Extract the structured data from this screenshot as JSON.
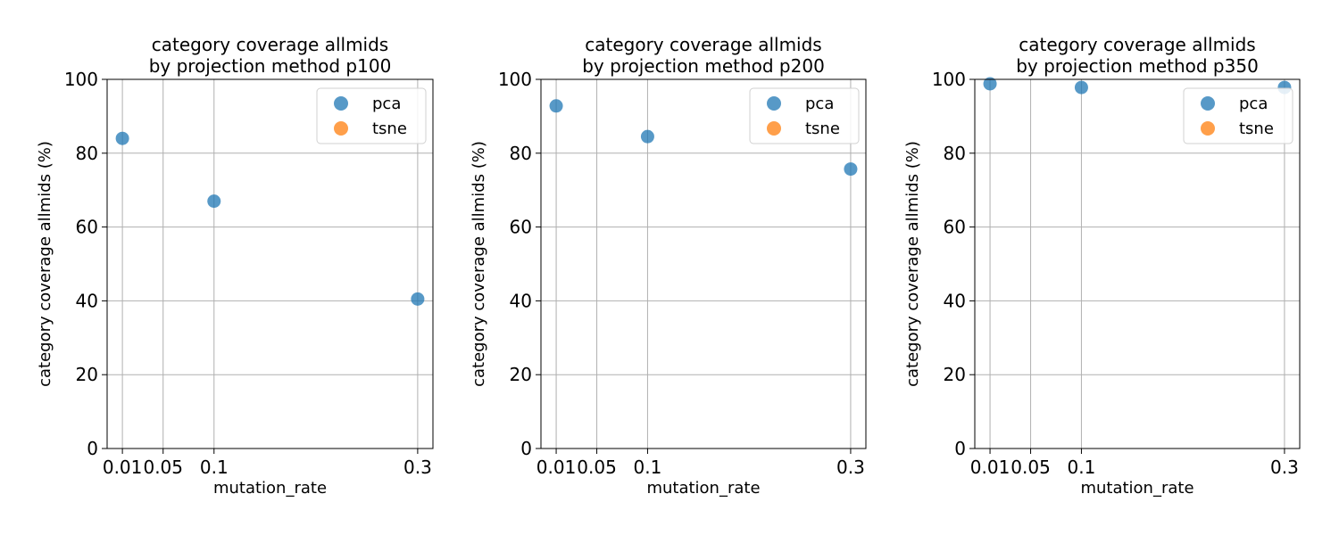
{
  "colors": {
    "pca": "#1f77b4",
    "tsne": "#ff7f0e",
    "grid": "#b0b0b0",
    "axes": "#000000"
  },
  "chart_data": [
    {
      "type": "scatter",
      "title_lines": [
        "category coverage allmids",
        "by projection method p100"
      ],
      "xlabel": "mutation_rate",
      "ylabel": "category coverage allmids (%)",
      "xlim": [
        -0.005,
        0.315
      ],
      "ylim": [
        0,
        100
      ],
      "xticks": [
        0.01,
        0.05,
        0.1,
        0.3
      ],
      "xtick_labels": [
        "0.01",
        "0.05",
        "0.1",
        "0.3"
      ],
      "yticks": [
        0,
        20,
        40,
        60,
        80,
        100
      ],
      "ytick_labels": [
        "0",
        "20",
        "40",
        "60",
        "80",
        "100"
      ],
      "grid": true,
      "legend_position": "top-right",
      "series": [
        {
          "name": "pca",
          "x": [
            0.01,
            0.1,
            0.3
          ],
          "y": [
            84,
            67,
            40.5
          ]
        },
        {
          "name": "tsne",
          "x": [],
          "y": []
        }
      ]
    },
    {
      "type": "scatter",
      "title_lines": [
        "category coverage allmids",
        "by projection method p200"
      ],
      "xlabel": "mutation_rate",
      "ylabel": "category coverage allmids (%)",
      "xlim": [
        -0.005,
        0.315
      ],
      "ylim": [
        0,
        100
      ],
      "xticks": [
        0.01,
        0.05,
        0.1,
        0.3
      ],
      "xtick_labels": [
        "0.01",
        "0.05",
        "0.1",
        "0.3"
      ],
      "yticks": [
        0,
        20,
        40,
        60,
        80,
        100
      ],
      "ytick_labels": [
        "0",
        "20",
        "40",
        "60",
        "80",
        "100"
      ],
      "grid": true,
      "legend_position": "top-right",
      "series": [
        {
          "name": "pca",
          "x": [
            0.01,
            0.1,
            0.3
          ],
          "y": [
            92.8,
            84.5,
            75.7
          ]
        },
        {
          "name": "tsne",
          "x": [],
          "y": []
        }
      ]
    },
    {
      "type": "scatter",
      "title_lines": [
        "category coverage allmids",
        "by projection method p350"
      ],
      "xlabel": "mutation_rate",
      "ylabel": "category coverage allmids (%)",
      "xlim": [
        -0.005,
        0.315
      ],
      "ylim": [
        0,
        100
      ],
      "xticks": [
        0.01,
        0.05,
        0.1,
        0.3
      ],
      "xtick_labels": [
        "0.01",
        "0.05",
        "0.1",
        "0.3"
      ],
      "yticks": [
        0,
        20,
        40,
        60,
        80,
        100
      ],
      "ytick_labels": [
        "0",
        "20",
        "40",
        "60",
        "80",
        "100"
      ],
      "grid": true,
      "legend_position": "top-right",
      "series": [
        {
          "name": "pca",
          "x": [
            0.01,
            0.1,
            0.3
          ],
          "y": [
            98.8,
            97.8,
            97.8
          ]
        },
        {
          "name": "tsne",
          "x": [],
          "y": []
        }
      ]
    }
  ]
}
